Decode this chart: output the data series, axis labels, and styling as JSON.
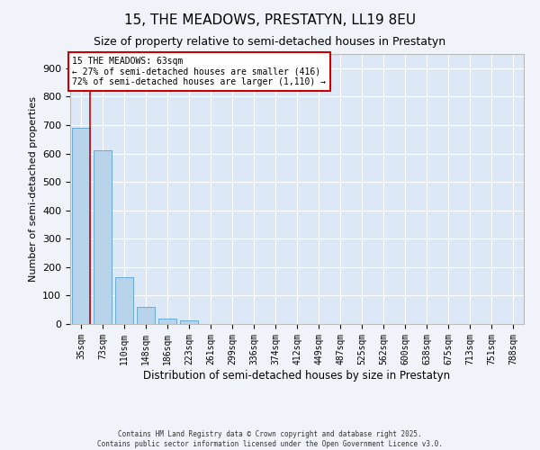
{
  "title1": "15, THE MEADOWS, PRESTATYN, LL19 8EU",
  "title2": "Size of property relative to semi-detached houses in Prestatyn",
  "xlabel": "Distribution of semi-detached houses by size in Prestatyn",
  "ylabel": "Number of semi-detached properties",
  "categories": [
    "35sqm",
    "73sqm",
    "110sqm",
    "148sqm",
    "186sqm",
    "223sqm",
    "261sqm",
    "299sqm",
    "336sqm",
    "374sqm",
    "412sqm",
    "449sqm",
    "487sqm",
    "525sqm",
    "562sqm",
    "600sqm",
    "638sqm",
    "675sqm",
    "713sqm",
    "751sqm",
    "788sqm"
  ],
  "values": [
    690,
    610,
    165,
    60,
    18,
    12,
    0,
    0,
    0,
    0,
    0,
    0,
    0,
    0,
    0,
    0,
    0,
    0,
    0,
    0,
    0
  ],
  "bar_color": "#b8d4ea",
  "bar_edge_color": "#6aaad4",
  "ylim": [
    0,
    950
  ],
  "yticks": [
    0,
    100,
    200,
    300,
    400,
    500,
    600,
    700,
    800,
    900
  ],
  "annotation_line1": "15 THE MEADOWS: 63sqm",
  "annotation_line2": "← 27% of semi-detached houses are smaller (416)",
  "annotation_line3": "72% of semi-detached houses are larger (1,110) →",
  "vline_color": "#cc0000",
  "annotation_box_color": "#cc0000",
  "bg_color": "#dce8f5",
  "grid_color": "#ffffff",
  "footer_line1": "Contains HM Land Registry data © Crown copyright and database right 2025.",
  "footer_line2": "Contains public sector information licensed under the Open Government Licence v3.0."
}
